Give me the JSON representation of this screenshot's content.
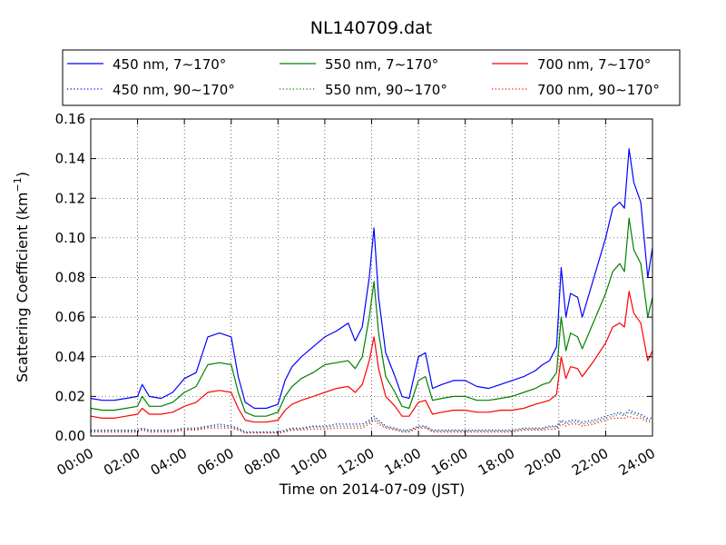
{
  "chart_data": {
    "type": "line",
    "title": "NL140709.dat",
    "xlabel": "Time on 2014-07-09 (JST)",
    "ylabel_main": "Scattering Coefficient (km",
    "ylabel_sup": "−1",
    "ylabel_close": ")",
    "xlim": [
      0,
      24
    ],
    "ylim": [
      0,
      0.16
    ],
    "grid": true,
    "legend_position": "top-center",
    "x_ticks": [
      0,
      2,
      4,
      6,
      8,
      10,
      12,
      14,
      16,
      18,
      20,
      22,
      24
    ],
    "x_tick_labels": [
      "00:00",
      "02:00",
      "04:00",
      "06:00",
      "08:00",
      "10:00",
      "12:00",
      "14:00",
      "16:00",
      "18:00",
      "20:00",
      "22:00",
      "24:00"
    ],
    "y_ticks": [
      0,
      0.02,
      0.04,
      0.06,
      0.08,
      0.1,
      0.12,
      0.14,
      0.16
    ],
    "y_tick_labels": [
      "0.00",
      "0.02",
      "0.04",
      "0.06",
      "0.08",
      "0.10",
      "0.12",
      "0.14",
      "0.16"
    ],
    "x": [
      0,
      0.5,
      1,
      1.5,
      2,
      2.2,
      2.5,
      3,
      3.5,
      4,
      4.5,
      5,
      5.5,
      6,
      6.3,
      6.6,
      7,
      7.5,
      8,
      8.3,
      8.6,
      9,
      9.5,
      10,
      10.5,
      11,
      11.3,
      11.6,
      11.9,
      12.1,
      12.3,
      12.6,
      13,
      13.3,
      13.6,
      14,
      14.3,
      14.6,
      15,
      15.5,
      16,
      16.5,
      17,
      17.5,
      18,
      18.5,
      19,
      19.3,
      19.6,
      19.9,
      20.1,
      20.3,
      20.5,
      20.8,
      21,
      21.5,
      22,
      22.3,
      22.6,
      22.8,
      23,
      23.2,
      23.5,
      23.8,
      24
    ],
    "series": [
      {
        "name": "450 nm, 7∼170°",
        "color": "#0000ff",
        "style": "solid",
        "values": [
          0.019,
          0.018,
          0.018,
          0.019,
          0.02,
          0.026,
          0.02,
          0.019,
          0.022,
          0.029,
          0.032,
          0.05,
          0.052,
          0.05,
          0.03,
          0.017,
          0.014,
          0.014,
          0.016,
          0.028,
          0.035,
          0.04,
          0.045,
          0.05,
          0.053,
          0.057,
          0.048,
          0.055,
          0.08,
          0.105,
          0.07,
          0.042,
          0.03,
          0.02,
          0.019,
          0.04,
          0.042,
          0.024,
          0.026,
          0.028,
          0.028,
          0.025,
          0.024,
          0.026,
          0.028,
          0.03,
          0.033,
          0.036,
          0.038,
          0.045,
          0.085,
          0.06,
          0.072,
          0.07,
          0.06,
          0.08,
          0.1,
          0.115,
          0.118,
          0.115,
          0.145,
          0.128,
          0.118,
          0.08,
          0.095
        ]
      },
      {
        "name": "550 nm, 7∼170°",
        "color": "#008000",
        "style": "solid",
        "values": [
          0.014,
          0.013,
          0.013,
          0.014,
          0.015,
          0.02,
          0.015,
          0.015,
          0.017,
          0.022,
          0.025,
          0.036,
          0.037,
          0.036,
          0.022,
          0.012,
          0.01,
          0.01,
          0.012,
          0.02,
          0.025,
          0.029,
          0.032,
          0.036,
          0.037,
          0.038,
          0.034,
          0.04,
          0.06,
          0.078,
          0.052,
          0.03,
          0.022,
          0.015,
          0.014,
          0.028,
          0.03,
          0.018,
          0.019,
          0.02,
          0.02,
          0.018,
          0.018,
          0.019,
          0.02,
          0.022,
          0.024,
          0.026,
          0.027,
          0.032,
          0.06,
          0.043,
          0.052,
          0.05,
          0.044,
          0.058,
          0.072,
          0.083,
          0.087,
          0.083,
          0.11,
          0.094,
          0.087,
          0.06,
          0.07
        ]
      },
      {
        "name": "700 nm, 7∼170°",
        "color": "#ff0000",
        "style": "solid",
        "values": [
          0.01,
          0.009,
          0.009,
          0.01,
          0.011,
          0.014,
          0.011,
          0.011,
          0.012,
          0.015,
          0.017,
          0.022,
          0.023,
          0.022,
          0.014,
          0.008,
          0.007,
          0.007,
          0.008,
          0.013,
          0.016,
          0.018,
          0.02,
          0.022,
          0.024,
          0.025,
          0.022,
          0.026,
          0.038,
          0.05,
          0.034,
          0.02,
          0.015,
          0.01,
          0.01,
          0.017,
          0.018,
          0.011,
          0.012,
          0.013,
          0.013,
          0.012,
          0.012,
          0.013,
          0.013,
          0.014,
          0.016,
          0.017,
          0.018,
          0.021,
          0.04,
          0.029,
          0.035,
          0.034,
          0.03,
          0.038,
          0.047,
          0.055,
          0.057,
          0.055,
          0.073,
          0.062,
          0.057,
          0.038,
          0.043
        ]
      },
      {
        "name": "450 nm, 90∼170°",
        "color": "#0000ff",
        "style": "dotted",
        "values": [
          0.003,
          0.003,
          0.003,
          0.003,
          0.003,
          0.004,
          0.003,
          0.003,
          0.003,
          0.004,
          0.004,
          0.005,
          0.006,
          0.005,
          0.004,
          0.002,
          0.002,
          0.002,
          0.002,
          0.003,
          0.004,
          0.004,
          0.005,
          0.005,
          0.006,
          0.006,
          0.006,
          0.006,
          0.008,
          0.01,
          0.008,
          0.005,
          0.004,
          0.003,
          0.003,
          0.005,
          0.005,
          0.003,
          0.003,
          0.003,
          0.003,
          0.003,
          0.003,
          0.003,
          0.003,
          0.004,
          0.004,
          0.004,
          0.005,
          0.005,
          0.008,
          0.007,
          0.008,
          0.008,
          0.007,
          0.008,
          0.01,
          0.011,
          0.012,
          0.011,
          0.013,
          0.012,
          0.011,
          0.009,
          0.009
        ]
      },
      {
        "name": "550 nm, 90∼170°",
        "color": "#008000",
        "style": "dotted",
        "values": [
          0.0025,
          0.0025,
          0.0025,
          0.0025,
          0.0025,
          0.0035,
          0.0025,
          0.0025,
          0.0025,
          0.0035,
          0.0035,
          0.0045,
          0.005,
          0.0045,
          0.0035,
          0.0018,
          0.0018,
          0.0018,
          0.0018,
          0.0025,
          0.0035,
          0.0035,
          0.0045,
          0.0045,
          0.005,
          0.005,
          0.005,
          0.005,
          0.007,
          0.009,
          0.007,
          0.0045,
          0.0035,
          0.0025,
          0.0025,
          0.0045,
          0.0045,
          0.0025,
          0.0025,
          0.0025,
          0.0025,
          0.0025,
          0.0025,
          0.0025,
          0.0025,
          0.0035,
          0.0035,
          0.0035,
          0.0045,
          0.0045,
          0.007,
          0.006,
          0.007,
          0.007,
          0.006,
          0.007,
          0.009,
          0.01,
          0.011,
          0.01,
          0.012,
          0.011,
          0.01,
          0.008,
          0.008
        ]
      },
      {
        "name": "700 nm, 90∼170°",
        "color": "#ff0000",
        "style": "dotted",
        "values": [
          0.002,
          0.002,
          0.002,
          0.002,
          0.002,
          0.003,
          0.002,
          0.002,
          0.002,
          0.003,
          0.003,
          0.004,
          0.004,
          0.004,
          0.003,
          0.0015,
          0.0015,
          0.0015,
          0.0015,
          0.002,
          0.003,
          0.003,
          0.0035,
          0.0035,
          0.004,
          0.004,
          0.004,
          0.004,
          0.006,
          0.008,
          0.006,
          0.004,
          0.003,
          0.002,
          0.002,
          0.004,
          0.004,
          0.002,
          0.002,
          0.002,
          0.002,
          0.002,
          0.002,
          0.002,
          0.002,
          0.003,
          0.003,
          0.003,
          0.0035,
          0.0035,
          0.006,
          0.005,
          0.006,
          0.006,
          0.005,
          0.006,
          0.008,
          0.009,
          0.009,
          0.009,
          0.01,
          0.009,
          0.009,
          0.007,
          0.007
        ]
      }
    ]
  }
}
